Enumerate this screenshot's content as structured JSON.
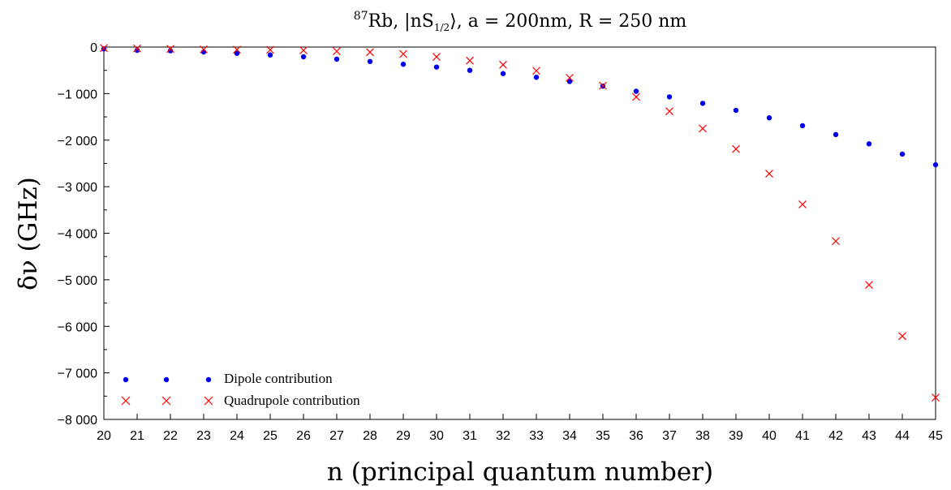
{
  "chart_data": {
    "type": "scatter",
    "title": {
      "sup": "87",
      "rest": "Rb,  |nS",
      "sub": "1/2",
      "tail": "⟩, a = 200nm, R = 250 nm"
    },
    "xlabel": "n (principal quantum number)",
    "ylabel": "δν (GHz)",
    "xlim": [
      20,
      45
    ],
    "ylim": [
      -8000,
      0
    ],
    "xticks": [
      "20",
      "21",
      "22",
      "23",
      "24",
      "25",
      "26",
      "27",
      "28",
      "29",
      "30",
      "31",
      "32",
      "33",
      "34",
      "35",
      "36",
      "37",
      "38",
      "39",
      "40",
      "41",
      "42",
      "43",
      "44",
      "45"
    ],
    "yticks": [
      {
        "value": 0,
        "label": "0"
      },
      {
        "value": -1000,
        "label": "−1 000"
      },
      {
        "value": -2000,
        "label": "−2 000"
      },
      {
        "value": -3000,
        "label": "−3 000"
      },
      {
        "value": -4000,
        "label": "−4 000"
      },
      {
        "value": -5000,
        "label": "−5 000"
      },
      {
        "value": -6000,
        "label": "−6 000"
      },
      {
        "value": -7000,
        "label": "−7 000"
      },
      {
        "value": -8000,
        "label": "−8 000"
      }
    ],
    "series": [
      {
        "name": "Dipole contribution",
        "marker": "dot",
        "color": "#0000ee",
        "x": [
          20,
          21,
          22,
          23,
          24,
          25,
          26,
          27,
          28,
          29,
          30,
          31,
          32,
          33,
          34,
          35,
          36,
          37,
          38,
          39,
          40,
          41,
          42,
          43,
          44,
          45
        ],
        "y": [
          -40,
          -70,
          -80,
          -105,
          -135,
          -170,
          -210,
          -260,
          -310,
          -370,
          -430,
          -500,
          -570,
          -650,
          -740,
          -840,
          -950,
          -1070,
          -1210,
          -1360,
          -1520,
          -1690,
          -1880,
          -2080,
          -2300,
          -2530
        ]
      },
      {
        "name": "Quadrupole contribution",
        "marker": "cross",
        "color": "#ff0000",
        "x": [
          20,
          21,
          22,
          23,
          24,
          25,
          26,
          27,
          28,
          29,
          30,
          31,
          32,
          33,
          34,
          35,
          36,
          37,
          38,
          39,
          40,
          41,
          42,
          43,
          44,
          45
        ],
        "y": [
          -20,
          -30,
          -40,
          -50,
          -55,
          -60,
          -70,
          -90,
          -110,
          -150,
          -210,
          -290,
          -380,
          -510,
          -660,
          -830,
          -1070,
          -1380,
          -1750,
          -2190,
          -2720,
          -3380,
          -4170,
          -5110,
          -6210,
          -7530
        ]
      }
    ],
    "legend_position": "bottom-left",
    "grid": false
  }
}
